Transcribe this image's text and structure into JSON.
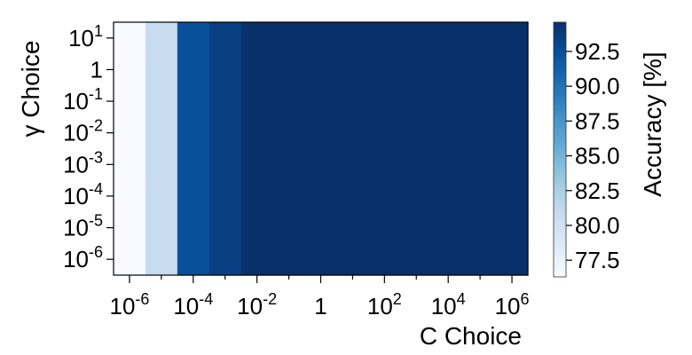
{
  "chart_data": {
    "type": "heatmap",
    "xlabel": "C Choice",
    "ylabel": "γ Choice",
    "x_scale": "log",
    "y_scale": "log",
    "x_values": [
      1e-06,
      1e-05,
      0.0001,
      0.001,
      0.01,
      0.1,
      1,
      10,
      100,
      1000,
      10000,
      100000,
      1000000
    ],
    "y_values": [
      1e-06,
      1e-05,
      0.0001,
      0.001,
      0.01,
      0.1,
      1,
      10
    ],
    "x_ticks": [
      {
        "base": "10",
        "exp": "-6",
        "value": 1e-06
      },
      {
        "base": "10",
        "exp": "-4",
        "value": 0.0001
      },
      {
        "base": "10",
        "exp": "-2",
        "value": 0.01
      },
      {
        "base": "1",
        "exp": "",
        "value": 1
      },
      {
        "base": "10",
        "exp": "2",
        "value": 100
      },
      {
        "base": "10",
        "exp": "4",
        "value": 10000
      },
      {
        "base": "10",
        "exp": "6",
        "value": 1000000
      }
    ],
    "y_ticks": [
      {
        "base": "10",
        "exp": "1",
        "value": 10
      },
      {
        "base": "1",
        "exp": "",
        "value": 1
      },
      {
        "base": "10",
        "exp": "-1",
        "value": 0.1
      },
      {
        "base": "10",
        "exp": "-2",
        "value": 0.01
      },
      {
        "base": "10",
        "exp": "-3",
        "value": 0.001
      },
      {
        "base": "10",
        "exp": "-4",
        "value": 0.0001
      },
      {
        "base": "10",
        "exp": "-5",
        "value": 1e-05
      },
      {
        "base": "10",
        "exp": "-6",
        "value": 1e-06
      }
    ],
    "accuracy_by_c_column": [
      76.3,
      80.8,
      92.4,
      93.5,
      94.6,
      94.6,
      94.6,
      94.6,
      94.6,
      94.6,
      94.6,
      94.6,
      94.6
    ],
    "colorbar": {
      "label": "Accuracy [%]",
      "min": 76.3,
      "max": 94.6,
      "ticks": [
        "77.5",
        "80.0",
        "82.5",
        "85.0",
        "87.5",
        "90.0",
        "92.5"
      ],
      "colormap": "Blues",
      "colors": [
        "#f7fbff",
        "#deebf7",
        "#c6dbef",
        "#9ecae1",
        "#6baed6",
        "#4292c6",
        "#2171b5",
        "#08519c",
        "#08306b"
      ]
    },
    "grid": false
  }
}
